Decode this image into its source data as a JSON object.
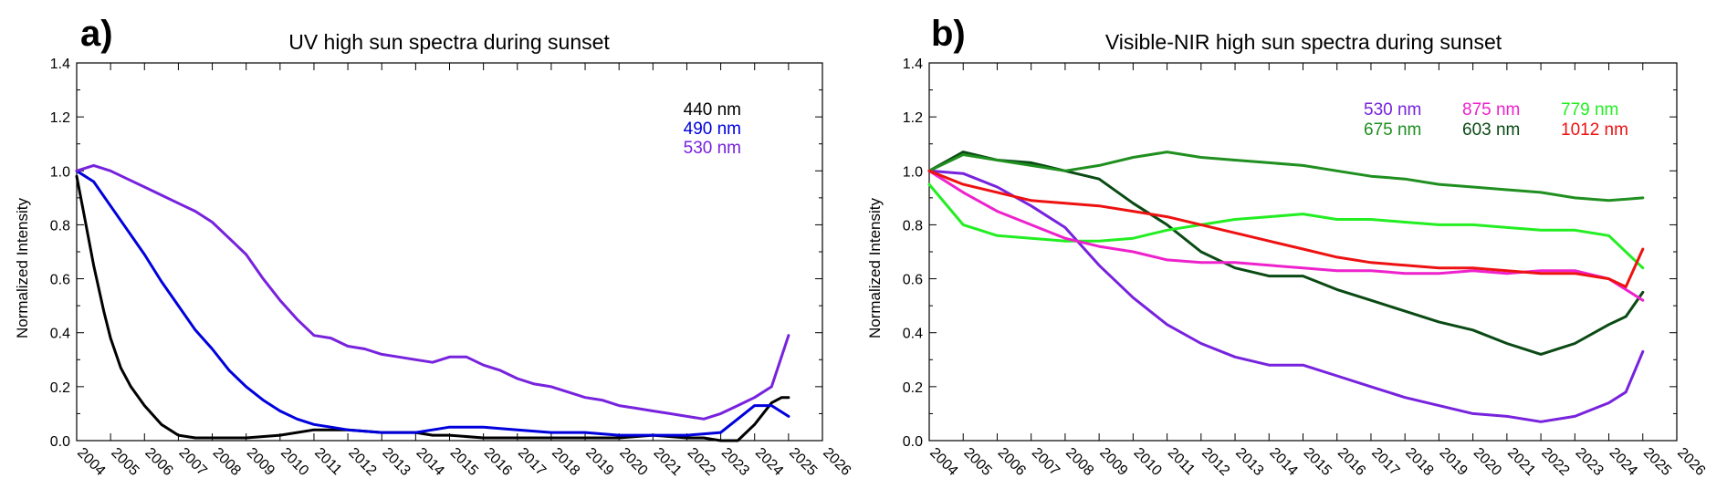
{
  "chart_data": [
    {
      "type": "line",
      "panel_label": "a)",
      "title": "UV high sun spectra during sunset",
      "xlabel": "",
      "ylabel": "Normalized Intensity",
      "xlim": [
        2004,
        2026
      ],
      "ylim": [
        0,
        1.4
      ],
      "x_ticks": [
        "2004",
        "2005",
        "2006",
        "2007",
        "2008",
        "2009",
        "2010",
        "2011",
        "2012",
        "2013",
        "2014",
        "2015",
        "2016",
        "2017",
        "2018",
        "2019",
        "2020",
        "2021",
        "2022",
        "2023",
        "2024",
        "2025",
        "2026"
      ],
      "y_ticks": [
        "0.0",
        "0.2",
        "0.4",
        "0.6",
        "0.8",
        "1.0",
        "1.2",
        "1.4"
      ],
      "grid": false,
      "legend_position": "top-right",
      "series": [
        {
          "name": "440 nm",
          "color": "#000000",
          "x": [
            2004.0,
            2004.2,
            2004.5,
            2004.8,
            2005.0,
            2005.3,
            2005.6,
            2006.0,
            2006.5,
            2007.0,
            2007.5,
            2008.0,
            2009.0,
            2010.0,
            2011.0,
            2012.0,
            2013.0,
            2014.0,
            2014.5,
            2015.0,
            2016.0,
            2017.0,
            2018.0,
            2019.0,
            2020.0,
            2021.0,
            2022.0,
            2022.5,
            2023.0,
            2023.5,
            2024.0,
            2024.5,
            2024.8,
            2025.0
          ],
          "y": [
            0.98,
            0.85,
            0.65,
            0.48,
            0.38,
            0.27,
            0.2,
            0.13,
            0.06,
            0.02,
            0.01,
            0.01,
            0.01,
            0.02,
            0.04,
            0.04,
            0.03,
            0.03,
            0.02,
            0.02,
            0.01,
            0.01,
            0.01,
            0.01,
            0.01,
            0.02,
            0.01,
            0.01,
            0.0,
            0.0,
            0.06,
            0.14,
            0.16,
            0.16
          ]
        },
        {
          "name": "490 nm",
          "color": "#0000dd",
          "x": [
            2004.0,
            2004.5,
            2005.0,
            2005.5,
            2006.0,
            2006.5,
            2007.0,
            2007.5,
            2008.0,
            2008.5,
            2009.0,
            2009.5,
            2010.0,
            2010.5,
            2011.0,
            2011.5,
            2012.0,
            2013.0,
            2014.0,
            2014.5,
            2015.0,
            2016.0,
            2017.0,
            2018.0,
            2019.0,
            2020.0,
            2021.0,
            2022.0,
            2023.0,
            2023.5,
            2024.0,
            2024.5,
            2025.0
          ],
          "y": [
            1.0,
            0.96,
            0.87,
            0.78,
            0.69,
            0.59,
            0.5,
            0.41,
            0.34,
            0.26,
            0.2,
            0.15,
            0.11,
            0.08,
            0.06,
            0.05,
            0.04,
            0.03,
            0.03,
            0.04,
            0.05,
            0.05,
            0.04,
            0.03,
            0.03,
            0.02,
            0.02,
            0.02,
            0.03,
            0.08,
            0.13,
            0.13,
            0.09
          ]
        },
        {
          "name": "530 nm",
          "color": "#7722dd",
          "x": [
            2004.0,
            2004.5,
            2005.0,
            2005.5,
            2006.0,
            2006.5,
            2007.0,
            2007.5,
            2008.0,
            2008.5,
            2009.0,
            2009.5,
            2010.0,
            2010.5,
            2011.0,
            2011.5,
            2012.0,
            2012.5,
            2013.0,
            2013.5,
            2014.0,
            2014.5,
            2015.0,
            2015.5,
            2016.0,
            2016.5,
            2017.0,
            2017.5,
            2018.0,
            2018.5,
            2019.0,
            2019.5,
            2020.0,
            2020.5,
            2021.0,
            2021.5,
            2022.0,
            2022.5,
            2023.0,
            2023.5,
            2024.0,
            2024.5,
            2025.0
          ],
          "y": [
            1.0,
            1.02,
            1.0,
            0.97,
            0.94,
            0.91,
            0.88,
            0.85,
            0.81,
            0.75,
            0.69,
            0.6,
            0.52,
            0.45,
            0.39,
            0.38,
            0.35,
            0.34,
            0.32,
            0.31,
            0.3,
            0.29,
            0.31,
            0.31,
            0.28,
            0.26,
            0.23,
            0.21,
            0.2,
            0.18,
            0.16,
            0.15,
            0.13,
            0.12,
            0.11,
            0.1,
            0.09,
            0.08,
            0.1,
            0.13,
            0.16,
            0.2,
            0.39
          ]
        }
      ]
    },
    {
      "type": "line",
      "panel_label": "b)",
      "title": "Visible-NIR high sun spectra during sunset",
      "xlabel": "",
      "ylabel": "Normalized Intensity",
      "xlim": [
        2004,
        2026
      ],
      "ylim": [
        0,
        1.4
      ],
      "x_ticks": [
        "2004",
        "2005",
        "2006",
        "2007",
        "2008",
        "2009",
        "2010",
        "2011",
        "2012",
        "2013",
        "2014",
        "2015",
        "2016",
        "2017",
        "2018",
        "2019",
        "2020",
        "2021",
        "2022",
        "2023",
        "2024",
        "2025",
        "2026"
      ],
      "y_ticks": [
        "0.0",
        "0.2",
        "0.4",
        "0.6",
        "0.8",
        "1.0",
        "1.2",
        "1.4"
      ],
      "grid": false,
      "legend_position": "top-right",
      "series": [
        {
          "name": "530 nm",
          "color": "#7722dd",
          "x": [
            2004.0,
            2005.0,
            2006.0,
            2007.0,
            2008.0,
            2009.0,
            2010.0,
            2011.0,
            2012.0,
            2013.0,
            2014.0,
            2015.0,
            2016.0,
            2017.0,
            2018.0,
            2019.0,
            2020.0,
            2021.0,
            2022.0,
            2023.0,
            2024.0,
            2024.5,
            2025.0
          ],
          "y": [
            1.0,
            0.99,
            0.94,
            0.87,
            0.79,
            0.65,
            0.53,
            0.43,
            0.36,
            0.31,
            0.28,
            0.28,
            0.24,
            0.2,
            0.16,
            0.13,
            0.1,
            0.09,
            0.07,
            0.09,
            0.14,
            0.18,
            0.33
          ]
        },
        {
          "name": "603 nm",
          "color": "#0a4a14",
          "x": [
            2004.0,
            2005.0,
            2006.0,
            2007.0,
            2008.0,
            2009.0,
            2010.0,
            2011.0,
            2012.0,
            2013.0,
            2014.0,
            2015.0,
            2016.0,
            2017.0,
            2018.0,
            2019.0,
            2020.0,
            2021.0,
            2022.0,
            2023.0,
            2024.0,
            2024.5,
            2025.0
          ],
          "y": [
            1.0,
            1.07,
            1.04,
            1.03,
            1.0,
            0.97,
            0.88,
            0.8,
            0.7,
            0.64,
            0.61,
            0.61,
            0.56,
            0.52,
            0.48,
            0.44,
            0.41,
            0.36,
            0.32,
            0.36,
            0.43,
            0.46,
            0.55
          ]
        },
        {
          "name": "675 nm",
          "color": "#1f8f1f",
          "x": [
            2004.0,
            2005.0,
            2006.0,
            2007.0,
            2008.0,
            2009.0,
            2010.0,
            2011.0,
            2012.0,
            2013.0,
            2014.0,
            2015.0,
            2016.0,
            2017.0,
            2018.0,
            2019.0,
            2020.0,
            2021.0,
            2022.0,
            2023.0,
            2024.0,
            2025.0
          ],
          "y": [
            1.0,
            1.06,
            1.04,
            1.02,
            1.0,
            1.02,
            1.05,
            1.07,
            1.05,
            1.04,
            1.03,
            1.02,
            1.0,
            0.98,
            0.97,
            0.95,
            0.94,
            0.93,
            0.92,
            0.9,
            0.89,
            0.9
          ]
        },
        {
          "name": "779 nm",
          "color": "#22ee22",
          "x": [
            2004.0,
            2005.0,
            2006.0,
            2007.0,
            2008.0,
            2009.0,
            2010.0,
            2011.0,
            2012.0,
            2013.0,
            2014.0,
            2015.0,
            2016.0,
            2017.0,
            2018.0,
            2019.0,
            2020.0,
            2021.0,
            2022.0,
            2023.0,
            2024.0,
            2025.0
          ],
          "y": [
            0.95,
            0.8,
            0.76,
            0.75,
            0.74,
            0.74,
            0.75,
            0.78,
            0.8,
            0.82,
            0.83,
            0.84,
            0.82,
            0.82,
            0.81,
            0.8,
            0.8,
            0.79,
            0.78,
            0.78,
            0.76,
            0.64
          ]
        },
        {
          "name": "875 nm",
          "color": "#ee22cc",
          "x": [
            2004.0,
            2005.0,
            2006.0,
            2007.0,
            2008.0,
            2009.0,
            2010.0,
            2011.0,
            2012.0,
            2013.0,
            2014.0,
            2015.0,
            2016.0,
            2017.0,
            2018.0,
            2019.0,
            2020.0,
            2021.0,
            2022.0,
            2023.0,
            2024.0,
            2025.0
          ],
          "y": [
            1.0,
            0.92,
            0.85,
            0.8,
            0.75,
            0.72,
            0.7,
            0.67,
            0.66,
            0.66,
            0.65,
            0.64,
            0.63,
            0.63,
            0.62,
            0.62,
            0.63,
            0.62,
            0.63,
            0.63,
            0.6,
            0.52
          ]
        },
        {
          "name": "1012 nm",
          "color": "#ee1111",
          "x": [
            2004.0,
            2005.0,
            2006.0,
            2007.0,
            2008.0,
            2009.0,
            2010.0,
            2011.0,
            2012.0,
            2013.0,
            2014.0,
            2015.0,
            2016.0,
            2017.0,
            2018.0,
            2019.0,
            2020.0,
            2021.0,
            2022.0,
            2023.0,
            2024.0,
            2024.5,
            2025.0
          ],
          "y": [
            1.0,
            0.95,
            0.92,
            0.89,
            0.88,
            0.87,
            0.85,
            0.83,
            0.8,
            0.77,
            0.74,
            0.71,
            0.68,
            0.66,
            0.65,
            0.64,
            0.64,
            0.63,
            0.62,
            0.62,
            0.6,
            0.57,
            0.71
          ]
        }
      ]
    }
  ]
}
